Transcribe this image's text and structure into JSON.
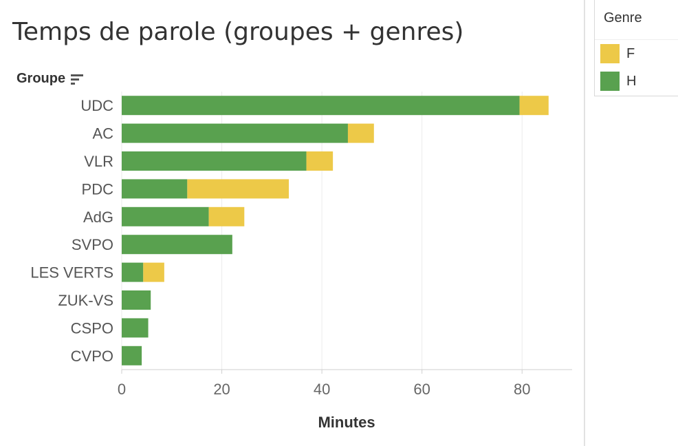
{
  "chart_data": {
    "type": "bar",
    "orientation": "horizontal",
    "stacked": true,
    "title": "Temps de parole (groupes + genres)",
    "category_header": "Groupe",
    "xlabel": "Minutes",
    "xlim": [
      0,
      90
    ],
    "xticks": [
      0,
      20,
      40,
      60,
      80
    ],
    "grid": true,
    "legend_placement": "top-right",
    "legend_title": "Genre",
    "categories": [
      "UDC",
      "AC",
      "VLR",
      "PDC",
      "AdG",
      "SVPO",
      "LES VERTS",
      "ZUK-VS",
      "CSPO",
      "CVPO"
    ],
    "series": [
      {
        "name": "H",
        "color": "#59a14f",
        "values": [
          79.5,
          45.2,
          36.9,
          13.1,
          17.4,
          22.1,
          4.3,
          5.8,
          5.3,
          4.0
        ]
      },
      {
        "name": "F",
        "color": "#edc948",
        "values": [
          5.8,
          5.2,
          5.3,
          20.3,
          7.1,
          0,
          4.2,
          0,
          0,
          0
        ]
      }
    ]
  }
}
